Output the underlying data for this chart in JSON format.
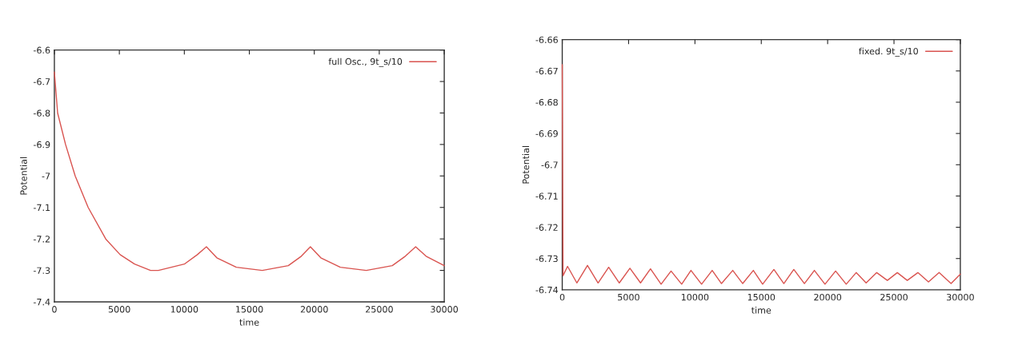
{
  "chart_data": [
    {
      "type": "line",
      "xlabel": "time",
      "ylabel": "Potential",
      "xlim": [
        0,
        30000
      ],
      "ylim": [
        -7.4,
        -6.6
      ],
      "xticks": [
        0,
        5000,
        10000,
        15000,
        20000,
        25000,
        30000
      ],
      "yticks": [
        -7.4,
        -7.3,
        -7.2,
        -7.1,
        -7,
        -6.9,
        -6.8,
        -6.7,
        -6.6
      ],
      "legend": "top right",
      "grid": false,
      "marker": "none",
      "line_style": "solid",
      "series": [
        {
          "name": "full Osc., 9t_s/10",
          "color": "#d9534f",
          "x": [
            0,
            250,
            860,
            1600,
            2600,
            3950,
            5060,
            6170,
            7400,
            8000,
            10000,
            11000,
            11700,
            12500,
            14000,
            16000,
            18000,
            19000,
            19700,
            20500,
            22000,
            24000,
            26000,
            27000,
            27800,
            28600,
            30000
          ],
          "values": [
            -6.67,
            -6.8,
            -6.9,
            -7.0,
            -7.1,
            -7.2,
            -7.25,
            -7.28,
            -7.3,
            -7.3,
            -7.28,
            -7.25,
            -7.225,
            -7.26,
            -7.29,
            -7.3,
            -7.285,
            -7.255,
            -7.225,
            -7.26,
            -7.29,
            -7.3,
            -7.285,
            -7.255,
            -7.225,
            -7.255,
            -7.285
          ]
        }
      ]
    },
    {
      "type": "line",
      "xlabel": "time",
      "ylabel": "Potential",
      "xlim": [
        0,
        30000
      ],
      "ylim": [
        -6.74,
        -6.66
      ],
      "xticks": [
        0,
        5000,
        10000,
        15000,
        20000,
        25000,
        30000
      ],
      "yticks": [
        -6.74,
        -6.73,
        -6.72,
        -6.71,
        -6.7,
        -6.69,
        -6.68,
        -6.67,
        -6.66
      ],
      "legend": "top right",
      "grid": false,
      "marker": "none",
      "line_style": "solid",
      "series": [
        {
          "name": "fixed. 9t_s/10",
          "color": "#d9534f",
          "x": [
            0,
            60,
            400,
            1100,
            1900,
            2700,
            3500,
            4300,
            5100,
            5900,
            6650,
            7450,
            8200,
            9000,
            9700,
            10500,
            11300,
            12000,
            12850,
            13600,
            14400,
            15100,
            15950,
            16700,
            17450,
            18250,
            19000,
            19800,
            20600,
            21400,
            22150,
            22900,
            23700,
            24500,
            25250,
            26000,
            26800,
            27600,
            28400,
            29300,
            30000
          ],
          "values": [
            -6.668,
            -6.7355,
            -6.7325,
            -6.7378,
            -6.7322,
            -6.7378,
            -6.7328,
            -6.7378,
            -6.7331,
            -6.7378,
            -6.7333,
            -6.7382,
            -6.734,
            -6.7382,
            -6.7338,
            -6.7382,
            -6.7338,
            -6.738,
            -6.7338,
            -6.738,
            -6.7338,
            -6.7382,
            -6.7335,
            -6.738,
            -6.7335,
            -6.738,
            -6.7338,
            -6.7382,
            -6.734,
            -6.7382,
            -6.7345,
            -6.7378,
            -6.7345,
            -6.737,
            -6.7345,
            -6.737,
            -6.7345,
            -6.7375,
            -6.7345,
            -6.738,
            -6.735
          ]
        }
      ]
    }
  ]
}
